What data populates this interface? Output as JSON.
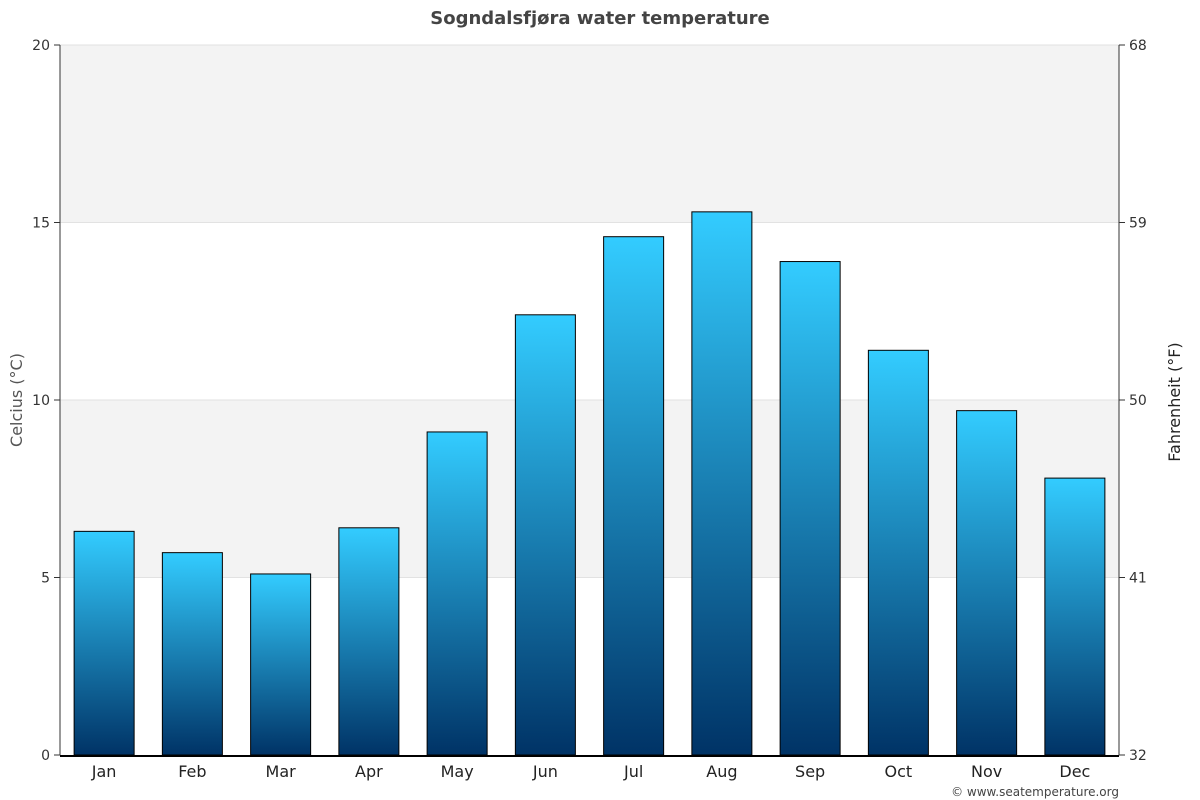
{
  "chart_data": {
    "type": "bar",
    "title": "Sogndalsfjøra water temperature",
    "categories": [
      "Jan",
      "Feb",
      "Mar",
      "Apr",
      "May",
      "Jun",
      "Jul",
      "Aug",
      "Sep",
      "Oct",
      "Nov",
      "Dec"
    ],
    "series": [
      {
        "values": [
          6.3,
          5.7,
          5.1,
          6.4,
          9.1,
          12.4,
          14.6,
          15.3,
          13.9,
          11.4,
          9.7,
          7.8
        ]
      }
    ],
    "ylabel": "Celcius (°C)",
    "ylabel_right": "Fahrenheit (°F)",
    "ylim": [
      0,
      20
    ],
    "yticks": [
      0,
      5,
      10,
      15,
      20
    ],
    "ylim_right": [
      32,
      68
    ],
    "yticks_right": [
      32,
      41,
      50,
      59,
      68
    ],
    "grid": true,
    "legend": "none",
    "colors": {
      "bar_top": "#33ccff",
      "bar_bottom": "#003366",
      "bar_border": "#000000",
      "band": "#f3f3f3",
      "axis_label_left": "#555555",
      "axis_label_right": "#222222"
    }
  },
  "credit": "© www.seatemperature.org"
}
